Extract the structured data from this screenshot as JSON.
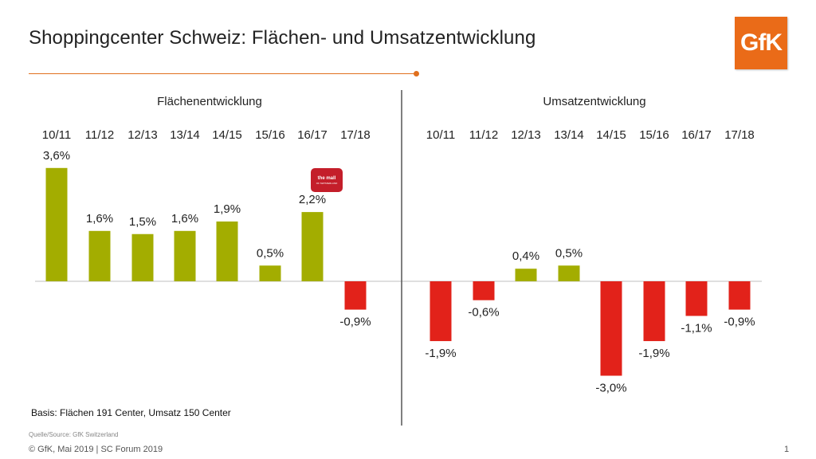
{
  "header": {
    "title": "Shoppingcenter Schweiz: Flächen- und Umsatzentwicklung",
    "logo_text": "GfK",
    "accent_color": "#e0701e",
    "logo_color": "#ea6b18"
  },
  "mall_logo": {
    "line1": "the mall",
    "line2": "OF SWITZERLAND"
  },
  "chart_data": [
    {
      "type": "bar",
      "title": "Flächenentwicklung",
      "categories": [
        "10/11",
        "11/12",
        "12/13",
        "13/14",
        "14/15",
        "15/16",
        "16/17",
        "17/18"
      ],
      "values": [
        3.6,
        1.6,
        1.5,
        1.6,
        1.9,
        0.5,
        2.2,
        -0.9
      ],
      "labels": [
        "3,6%",
        "1,6%",
        "1,5%",
        "1,6%",
        "1,9%",
        "0,5%",
        "2,2%",
        "-0,9%"
      ],
      "positive_color": "#a3ad00",
      "negative_color": "#e2221a"
    },
    {
      "type": "bar",
      "title": "Umsatzentwicklung",
      "categories": [
        "10/11",
        "11/12",
        "12/13",
        "13/14",
        "14/15",
        "15/16",
        "16/17",
        "17/18"
      ],
      "values": [
        -1.9,
        -0.6,
        0.4,
        0.5,
        -3.0,
        -1.9,
        -1.1,
        -0.9
      ],
      "labels": [
        "-1,9%",
        "-0,6%",
        "0,4%",
        "0,5%",
        "-3,0%",
        "-1,9%",
        "-1,1%",
        "-0,9%"
      ],
      "positive_color": "#a3ad00",
      "negative_color": "#e2221a"
    }
  ],
  "footer": {
    "basis": "Basis: Flächen 191 Center, Umsatz 150 Center",
    "source": "Quelle/Source: GfK Switzerland",
    "copyright": "© GfK, Mai 2019 | SC Forum 2019",
    "page": "1"
  }
}
